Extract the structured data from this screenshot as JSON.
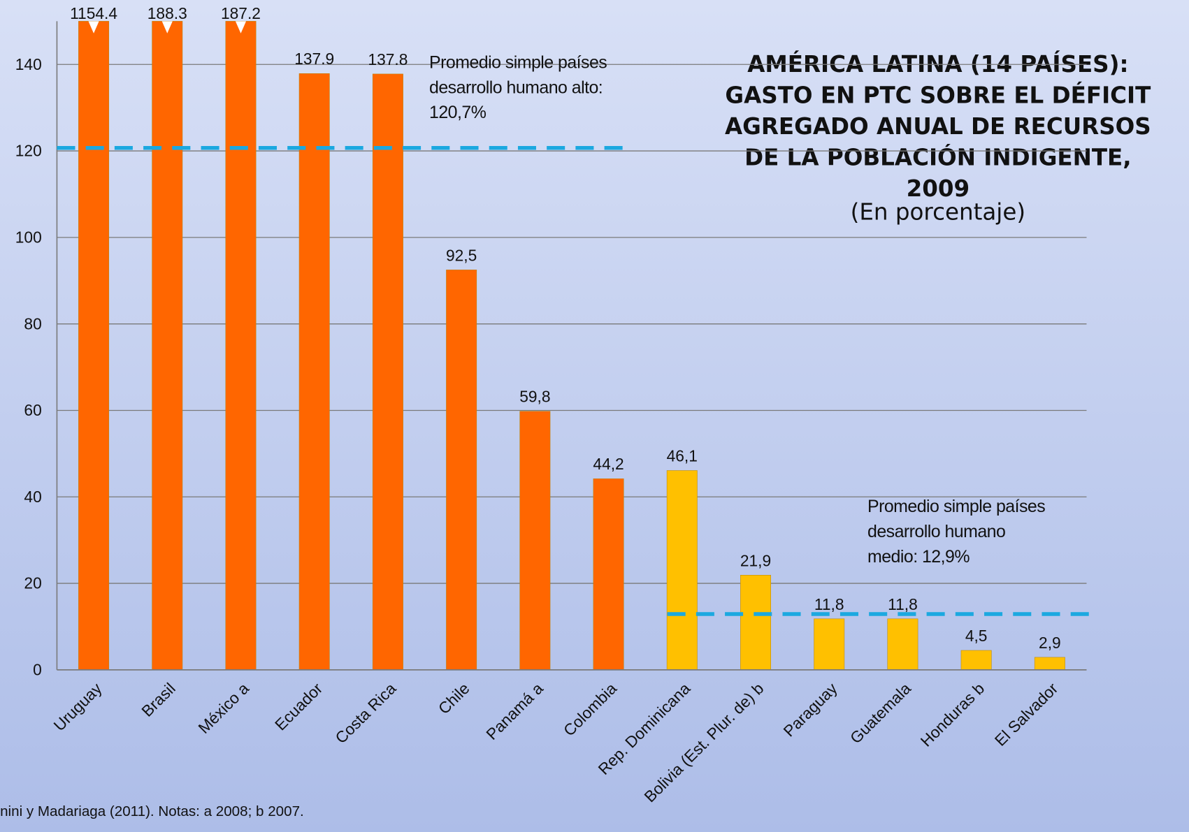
{
  "chart_data": {
    "type": "bar",
    "title_lines": [
      "AMÉRICA LATINA (14 PAÍSES):",
      "GASTO EN PTC SOBRE EL DÉFICIT",
      "AGREGADO ANUAL DE RECURSOS",
      "DE LA POBLACIÓN INDIGENTE,",
      "2009"
    ],
    "subtitle": "(En porcentaje)",
    "categories": [
      "Uruguay",
      "Brasil",
      "México a",
      "Ecuador",
      "Costa Rica",
      "Chile",
      "Panamá a",
      "Colombia",
      "Rep. Dominicana",
      "Bolivia (Est. Plur. de) b",
      "Paraguay",
      "Guatemala",
      "Honduras b",
      "El Salvador"
    ],
    "values": [
      1154.4,
      188.3,
      187.2,
      137.9,
      137.8,
      92.5,
      59.8,
      44.2,
      46.1,
      21.9,
      11.8,
      11.8,
      4.5,
      2.9
    ],
    "value_labels": [
      "1154.4",
      "188.3",
      "187.2",
      "137.9",
      "137.8",
      "92,5",
      "59,8",
      "44,2",
      "46,1",
      "21,9",
      "11,8",
      "11,8",
      "4,5",
      "2,9"
    ],
    "colors": [
      "#ff6600",
      "#ff6600",
      "#ff6600",
      "#ff6600",
      "#ff6600",
      "#ff6600",
      "#ff6600",
      "#ff6600",
      "#ffc000",
      "#ffc000",
      "#ffc000",
      "#ffc000",
      "#ffc000",
      "#ffc000"
    ],
    "ylim": [
      0,
      150
    ],
    "yticks": [
      0,
      20,
      40,
      60,
      80,
      100,
      120,
      140
    ],
    "grid": true,
    "reference_lines": [
      {
        "value": 120.7,
        "color": "#1ba8e0",
        "label_lines": [
          "Promedio simple países",
          "desarrollo humano alto:",
          "120,7%"
        ]
      },
      {
        "value": 12.9,
        "color": "#1ba8e0",
        "label_lines": [
          "Promedio simple países",
          "desarrollo humano",
          "medio:  12,9%"
        ]
      }
    ],
    "footnote": "nini y Madariaga (2011).  Notas: a 2008; b 2007."
  }
}
